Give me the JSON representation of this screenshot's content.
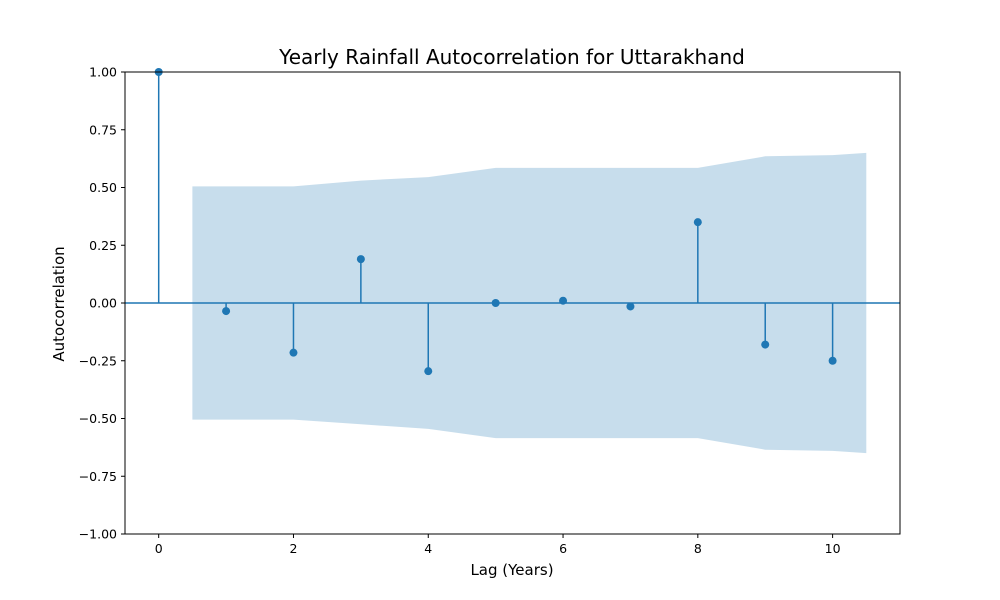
{
  "chart_data": {
    "type": "stem",
    "title": "Yearly Rainfall Autocorrelation for Uttarakhand",
    "xlabel": "Lag (Years)",
    "ylabel": "Autocorrelation",
    "xlim": [
      -0.5,
      11
    ],
    "ylim": [
      -1.0,
      1.0
    ],
    "x_ticks": [
      0,
      2,
      4,
      6,
      8,
      10
    ],
    "x_tick_labels": [
      "0",
      "2",
      "4",
      "6",
      "8",
      "10"
    ],
    "y_ticks": [
      1.0,
      0.75,
      0.5,
      0.25,
      0.0,
      -0.25,
      -0.5,
      -0.75,
      -1.0
    ],
    "y_tick_labels": [
      "1.00",
      "0.75",
      "0.50",
      "0.25",
      "0.00",
      "−0.25",
      "−0.50",
      "−0.75",
      "−1.00"
    ],
    "lags": [
      0,
      1,
      2,
      3,
      4,
      5,
      6,
      7,
      8,
      9,
      10
    ],
    "values": [
      1.0,
      -0.035,
      -0.215,
      0.19,
      -0.295,
      0.0,
      0.01,
      -0.015,
      0.35,
      -0.18,
      -0.25
    ],
    "confidence_interval": {
      "x": [
        0.5,
        1,
        2,
        3,
        4,
        5,
        6,
        7,
        8,
        9,
        10,
        10.5
      ],
      "upper": [
        0.505,
        0.505,
        0.505,
        0.53,
        0.545,
        0.585,
        0.585,
        0.585,
        0.585,
        0.635,
        0.64,
        0.65
      ],
      "lower": [
        -0.505,
        -0.505,
        -0.505,
        -0.525,
        -0.545,
        -0.585,
        -0.585,
        -0.585,
        -0.585,
        -0.635,
        -0.64,
        -0.65
      ]
    },
    "grid": false,
    "colors": {
      "stem": "#1f77b4",
      "marker": "#1f77b4",
      "confidence_band": "#1f77b4",
      "zero_line": "#1f77b4"
    }
  }
}
